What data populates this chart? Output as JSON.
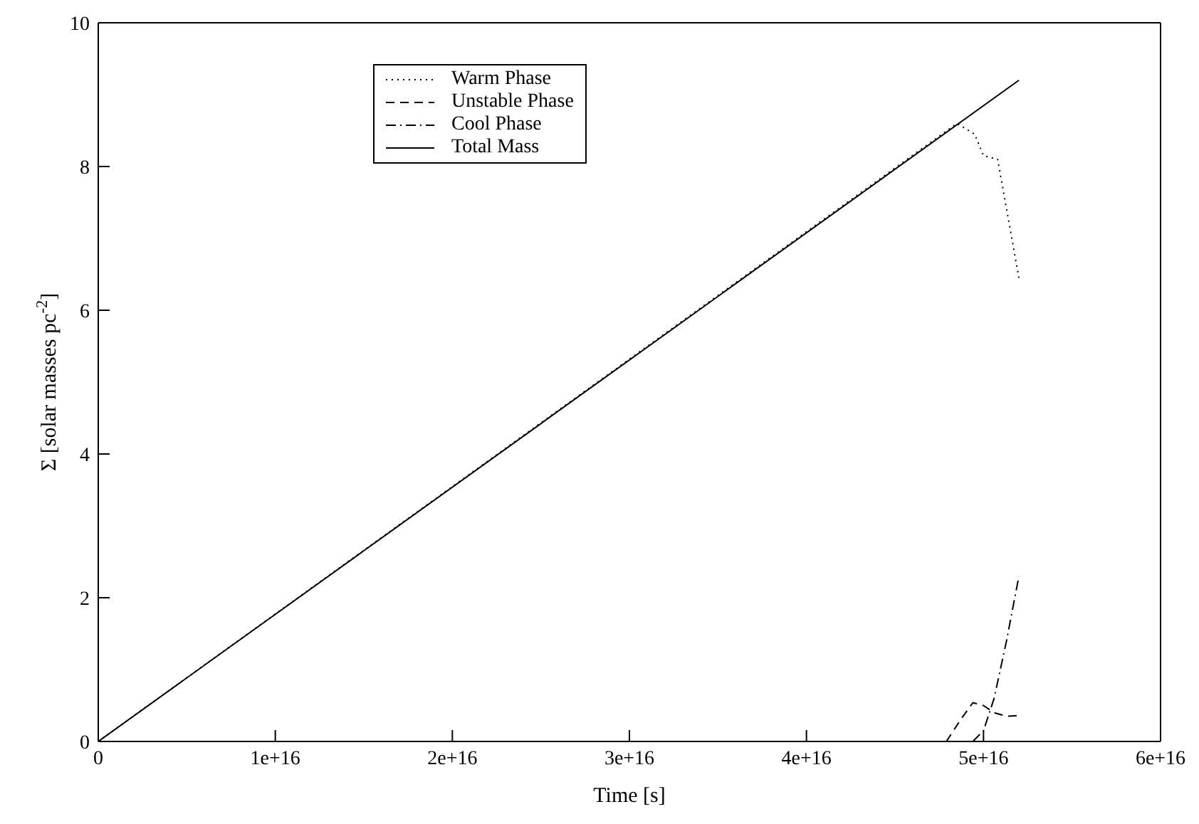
{
  "chart_data": {
    "type": "line",
    "xlabel": "Time [s]",
    "ylabel": "Σ [solar masses pc$^{-2}$]",
    "xlim": [
      0,
      6e+16
    ],
    "xticks": [
      0,
      {
        "value": 1e+16,
        "label": "1e+16"
      },
      {
        "value": 2e+16,
        "label": "2e+16"
      },
      {
        "value": 3e+16,
        "label": "3e+16"
      },
      {
        "value": 4e+16,
        "label": "4e+16"
      },
      {
        "value": 5e+16,
        "label": "5e+16"
      },
      {
        "value": 6e+16,
        "label": "6e+16"
      }
    ],
    "ylim": [
      0,
      10
    ],
    "yticks": [
      0,
      2,
      4,
      6,
      8,
      10
    ],
    "legend": "top",
    "marker": "none",
    "series": [
      {
        "name": "Warm Phase",
        "color": "#000000",
        "line_style": "dotted",
        "x": [
          0,
          4.85e+16,
          4.95e+16,
          5e+16,
          5.08e+16,
          5.2e+16
        ],
        "values": [
          0,
          8.6,
          8.45,
          8.15,
          8.1,
          6.45
        ]
      },
      {
        "name": "Unstable Phase",
        "color": "#000000",
        "line_style": "dashed",
        "x": [
          4.79e+16,
          4.87e+16,
          4.94e+16,
          5e+16,
          5.06e+16,
          5.13e+16,
          5.2e+16
        ],
        "values": [
          0,
          0.3,
          0.54,
          0.5,
          0.4,
          0.35,
          0.36
        ]
      },
      {
        "name": "Cool Phase",
        "color": "#000000",
        "line_style": "dashdot",
        "x": [
          4.94e+16,
          5e+16,
          5.06e+16,
          5.13e+16,
          5.2e+16
        ],
        "values": [
          0,
          0.15,
          0.6,
          1.4,
          2.3
        ]
      },
      {
        "name": "Total Mass",
        "color": "#000000",
        "line_style": "solid",
        "x": [
          0,
          5.2e+16
        ],
        "values": [
          0,
          9.2
        ]
      }
    ]
  }
}
